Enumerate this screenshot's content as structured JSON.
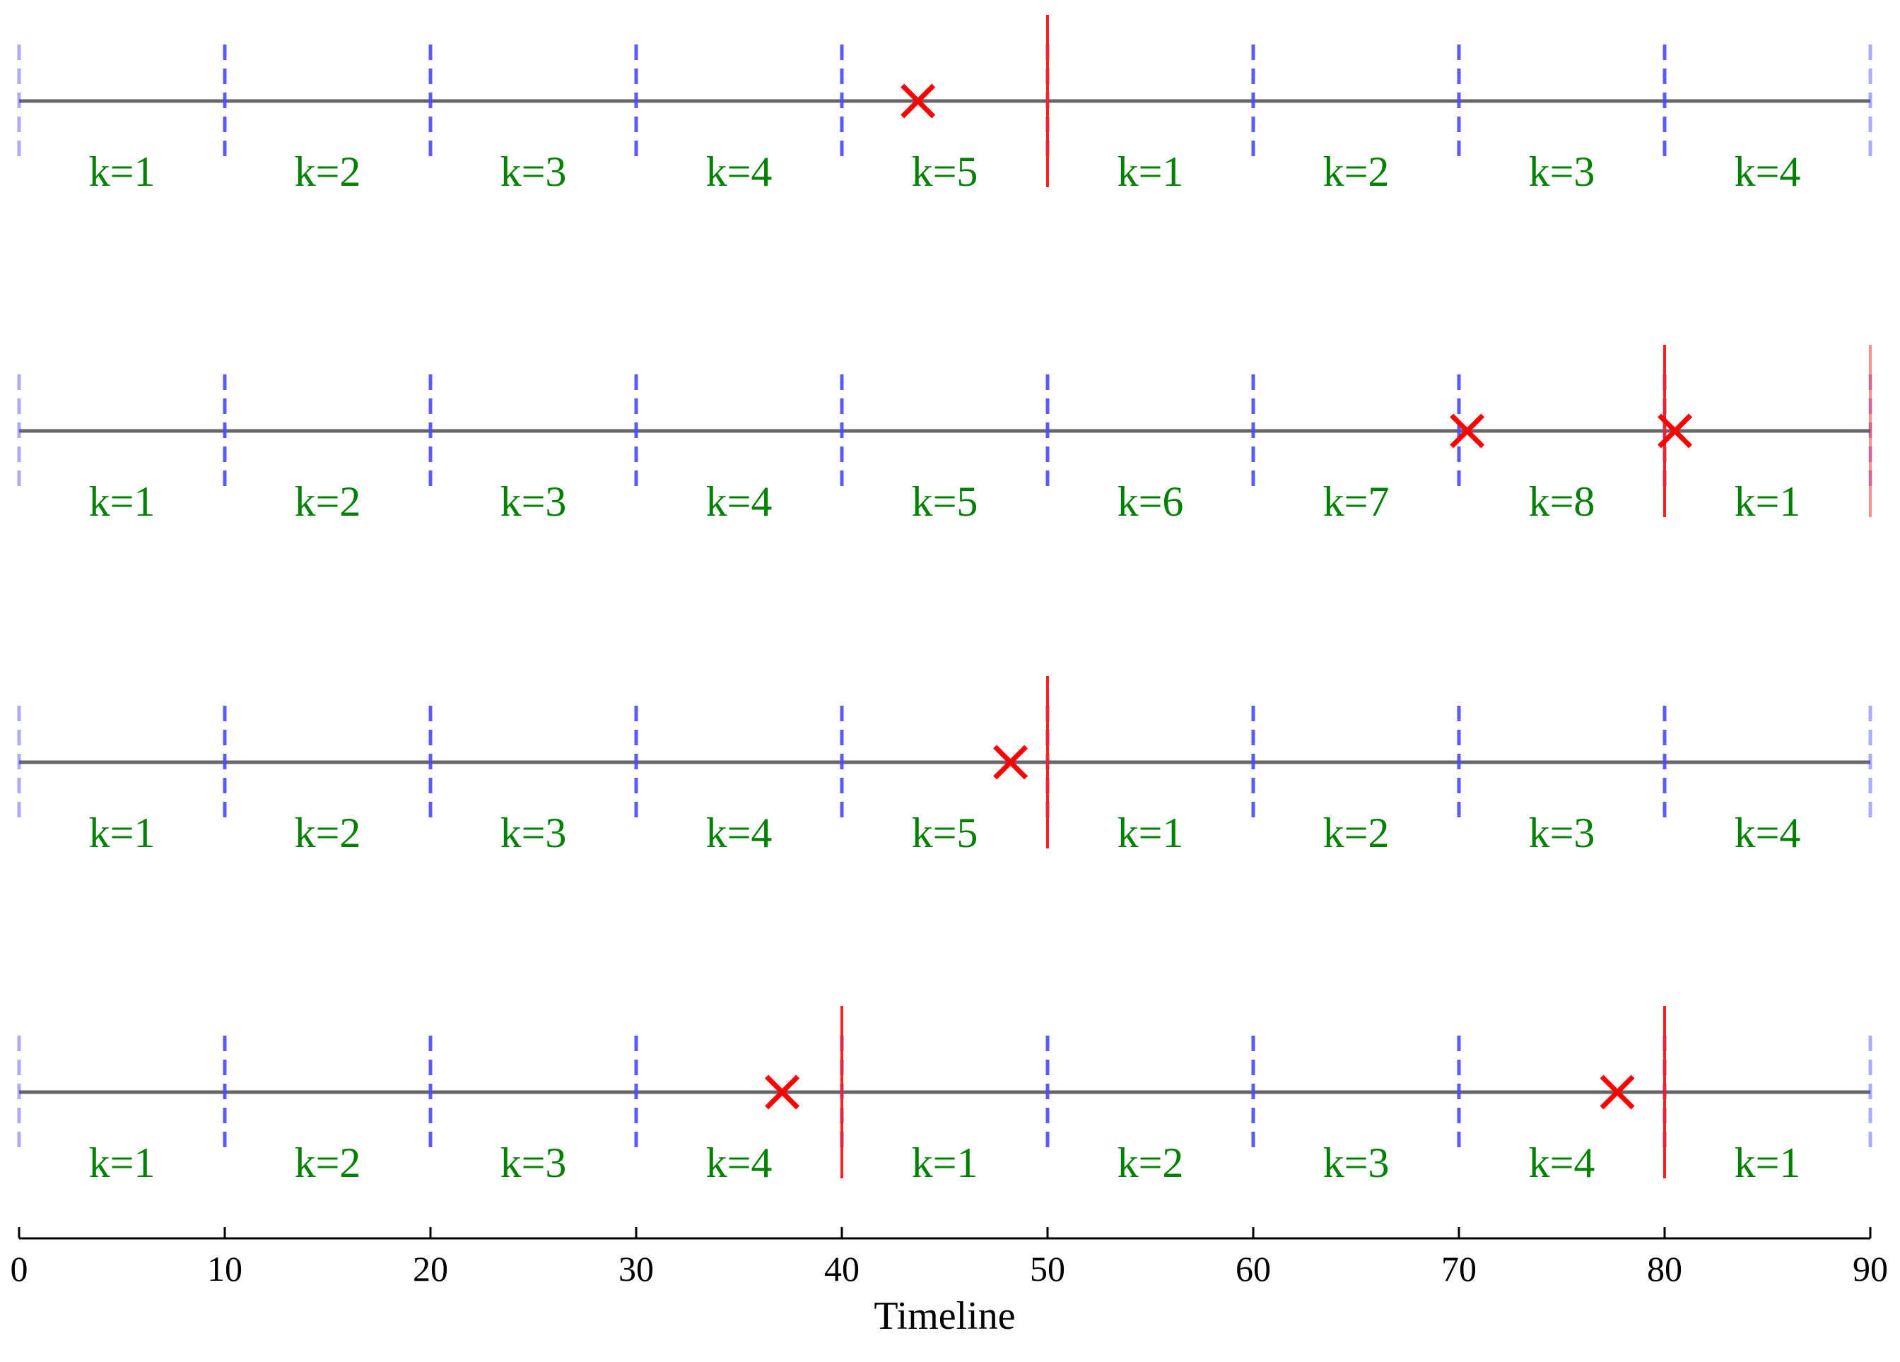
{
  "chart_data": {
    "type": "timeline",
    "xlabel": "Timeline",
    "xlim": [
      0,
      90
    ],
    "xticks": [
      0,
      10,
      20,
      30,
      40,
      50,
      60,
      70,
      80,
      90
    ],
    "boundaries": [
      0,
      10,
      20,
      30,
      40,
      50,
      60,
      70,
      80,
      90
    ],
    "rows": [
      {
        "segment_labels": [
          "k=1",
          "k=2",
          "k=3",
          "k=4",
          "k=5",
          "k=1",
          "k=2",
          "k=3",
          "k=4"
        ],
        "resets": [
          50
        ],
        "events": [
          43.7
        ]
      },
      {
        "segment_labels": [
          "k=1",
          "k=2",
          "k=3",
          "k=4",
          "k=5",
          "k=6",
          "k=7",
          "k=8",
          "k=1"
        ],
        "resets": [
          80,
          90
        ],
        "events": [
          70.4,
          80.5
        ]
      },
      {
        "segment_labels": [
          "k=1",
          "k=2",
          "k=3",
          "k=4",
          "k=5",
          "k=1",
          "k=2",
          "k=3",
          "k=4"
        ],
        "resets": [
          50
        ],
        "events": [
          48.2
        ]
      },
      {
        "segment_labels": [
          "k=1",
          "k=2",
          "k=3",
          "k=4",
          "k=1",
          "k=2",
          "k=3",
          "k=4",
          "k=1"
        ],
        "resets": [
          40,
          80
        ],
        "events": [
          37.1,
          77.7
        ]
      }
    ],
    "colors": {
      "timeline": "#666666",
      "boundary": "#4a4aff",
      "reset": "#ff2020",
      "event": "#ff0000",
      "label": "#008000",
      "axis": "#000000"
    }
  }
}
